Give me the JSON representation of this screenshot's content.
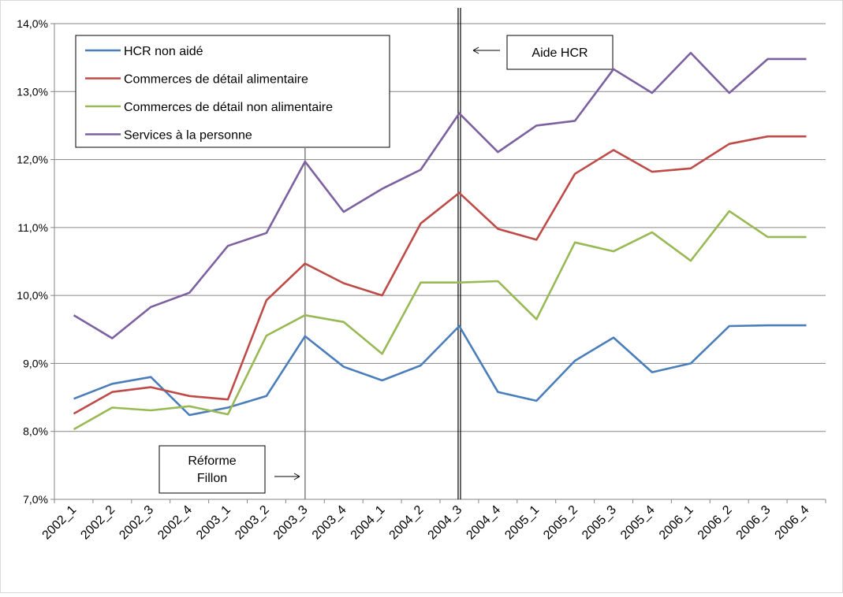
{
  "chart_data": {
    "type": "line",
    "categories": [
      "2002_1",
      "2002_2",
      "2002_3",
      "2002_4",
      "2003_1",
      "2003_2",
      "2003_3",
      "2003_4",
      "2004_1",
      "2004_2",
      "2004_3",
      "2004_4",
      "2005_1",
      "2005_2",
      "2005_3",
      "2005_4",
      "2006_1",
      "2006_2",
      "2006_3",
      "2006_4"
    ],
    "ylim": [
      7.0,
      14.0
    ],
    "yticks": [
      "7,0%",
      "8,0%",
      "9,0%",
      "10,0%",
      "11,0%",
      "12,0%",
      "13,0%",
      "14,0%"
    ],
    "ytick_values": [
      7,
      8,
      9,
      10,
      11,
      12,
      13,
      14
    ],
    "grid": true,
    "legend_position": "top-left",
    "series": [
      {
        "name": "HCR non aidé",
        "color": "#4a7ebb",
        "values": [
          8.48,
          8.7,
          8.8,
          8.24,
          8.35,
          8.52,
          9.4,
          8.95,
          8.75,
          8.97,
          9.55,
          8.58,
          8.45,
          9.04,
          9.38,
          8.87,
          9.0,
          9.55,
          9.56,
          9.56
        ]
      },
      {
        "name": "Commerces de détail alimentaire",
        "color": "#be4b48",
        "values": [
          8.26,
          8.58,
          8.65,
          8.52,
          8.47,
          9.93,
          10.47,
          10.18,
          10.0,
          11.06,
          11.51,
          10.98,
          10.82,
          11.79,
          12.14,
          11.82,
          11.87,
          12.23,
          12.34,
          12.34
        ]
      },
      {
        "name": "Commerces de détail non alimentaire",
        "color": "#98b954",
        "values": [
          8.03,
          8.35,
          8.31,
          8.37,
          8.25,
          9.41,
          9.71,
          9.61,
          9.14,
          10.19,
          10.19,
          10.21,
          9.65,
          10.78,
          10.65,
          10.93,
          10.51,
          11.24,
          10.86,
          10.86
        ]
      },
      {
        "name": "Services à la personne",
        "color": "#7d60a0",
        "values": [
          9.71,
          9.37,
          9.83,
          10.04,
          10.73,
          10.92,
          11.97,
          11.23,
          11.57,
          11.85,
          12.68,
          12.11,
          12.5,
          12.57,
          13.33,
          12.98,
          13.57,
          12.98,
          13.48,
          13.48
        ]
      }
    ],
    "annotations": [
      {
        "text": "Aide HCR",
        "category": "2004_3",
        "style": "double"
      },
      {
        "text_lines": [
          "Réforme",
          "Fillon"
        ],
        "category": "2003_3",
        "style": "single"
      }
    ]
  }
}
